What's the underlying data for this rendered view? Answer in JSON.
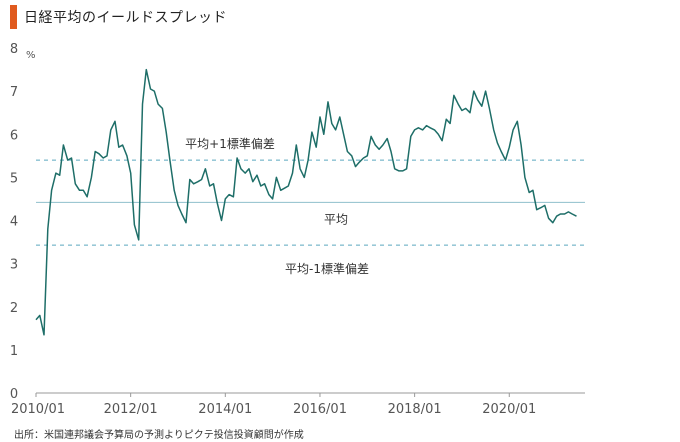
{
  "title": "日経平均のイールドスプレッド",
  "source": "出所：米国連邦議会予算局の予測よりピクテ投信投資顧問が作成",
  "colors": {
    "accent": "#e05a1e",
    "line": "#1e6e68",
    "band": "#5ba7bf",
    "mean": "#8fbfcc",
    "axis": "#999999"
  },
  "chart_data": {
    "type": "line",
    "title": "日経平均のイールドスプレッド",
    "xlabel": "",
    "ylabel": "%",
    "ylim": [
      0,
      8
    ],
    "yticks": [
      0,
      1,
      2,
      3,
      4,
      5,
      6,
      7,
      8
    ],
    "xlim": [
      2010.0,
      2021.6
    ],
    "xticks": [
      2010,
      2012,
      2014,
      2016,
      2018,
      2020
    ],
    "xtick_labels": [
      "2010/01",
      "2012/01",
      "2014/01",
      "2016/01",
      "2018/01",
      "2020/01"
    ],
    "grid": false,
    "reference_lines": [
      {
        "label": "平均+1標準偏差",
        "value": 5.4,
        "style": "dashed"
      },
      {
        "label": "平均",
        "value": 4.42,
        "style": "solid"
      },
      {
        "label": "平均-1標準偏差",
        "value": 3.43,
        "style": "dashed"
      }
    ],
    "series": [
      {
        "x": [
          2010.0,
          2010.08,
          2010.17,
          2010.25,
          2010.33,
          2010.42,
          2010.5,
          2010.58,
          2010.67,
          2010.75,
          2010.83,
          2010.92,
          2011.0,
          2011.08,
          2011.17,
          2011.25,
          2011.33,
          2011.42,
          2011.5,
          2011.58,
          2011.67,
          2011.75,
          2011.83,
          2011.92,
          2012.0,
          2012.08,
          2012.17,
          2012.25,
          2012.33,
          2012.42,
          2012.5,
          2012.58,
          2012.67,
          2012.75,
          2012.83,
          2012.92,
          2013.0,
          2013.08,
          2013.17,
          2013.25,
          2013.33,
          2013.42,
          2013.5,
          2013.58,
          2013.67,
          2013.75,
          2013.83,
          2013.92,
          2014.0,
          2014.08,
          2014.17,
          2014.25,
          2014.33,
          2014.42,
          2014.5,
          2014.58,
          2014.67,
          2014.75,
          2014.83,
          2014.92,
          2015.0,
          2015.08,
          2015.17,
          2015.25,
          2015.33,
          2015.42,
          2015.5,
          2015.58,
          2015.67,
          2015.75,
          2015.83,
          2015.92,
          2016.0,
          2016.08,
          2016.17,
          2016.25,
          2016.33,
          2016.42,
          2016.5,
          2016.58,
          2016.67,
          2016.75,
          2016.83,
          2016.92,
          2017.0,
          2017.08,
          2017.17,
          2017.25,
          2017.33,
          2017.42,
          2017.5,
          2017.58,
          2017.67,
          2017.75,
          2017.83,
          2017.92,
          2018.0,
          2018.08,
          2018.17,
          2018.25,
          2018.33,
          2018.42,
          2018.5,
          2018.58,
          2018.67,
          2018.75,
          2018.83,
          2018.92,
          2019.0,
          2019.08,
          2019.17,
          2019.25,
          2019.33,
          2019.42,
          2019.5,
          2019.58,
          2019.67,
          2019.75,
          2019.83,
          2019.92,
          2020.0,
          2020.08,
          2020.17,
          2020.25,
          2020.33,
          2020.42,
          2020.5,
          2020.58,
          2020.67,
          2020.75,
          2020.83,
          2020.92,
          2021.0,
          2021.08,
          2021.17,
          2021.25,
          2021.33,
          2021.42
        ],
        "values": [
          1.7,
          1.8,
          1.35,
          3.8,
          4.7,
          5.1,
          5.05,
          5.75,
          5.4,
          5.45,
          4.85,
          4.7,
          4.7,
          4.55,
          5.0,
          5.6,
          5.55,
          5.45,
          5.5,
          6.1,
          6.3,
          5.7,
          5.75,
          5.5,
          5.1,
          3.9,
          3.55,
          6.7,
          7.5,
          7.05,
          7.0,
          6.7,
          6.6,
          6.05,
          5.4,
          4.7,
          4.35,
          4.15,
          3.95,
          4.95,
          4.85,
          4.9,
          4.95,
          5.2,
          4.8,
          4.85,
          4.4,
          4.0,
          4.5,
          4.6,
          4.55,
          5.45,
          5.2,
          5.1,
          5.2,
          4.9,
          5.05,
          4.8,
          4.85,
          4.6,
          4.5,
          5.0,
          4.7,
          4.75,
          4.8,
          5.1,
          5.75,
          5.2,
          5.0,
          5.4,
          6.05,
          5.7,
          6.4,
          6.0,
          6.75,
          6.25,
          6.1,
          6.4,
          6.0,
          5.6,
          5.5,
          5.25,
          5.35,
          5.45,
          5.5,
          5.95,
          5.75,
          5.65,
          5.75,
          5.9,
          5.6,
          5.2,
          5.15,
          5.15,
          5.2,
          5.95,
          6.1,
          6.15,
          6.1,
          6.2,
          6.15,
          6.1,
          6.0,
          5.85,
          6.35,
          6.25,
          6.9,
          6.7,
          6.55,
          6.6,
          6.5,
          7.0,
          6.8,
          6.65,
          7.0,
          6.6,
          6.1,
          5.8,
          5.6,
          5.4,
          5.7,
          6.1,
          6.3,
          5.75,
          5.0,
          4.65,
          4.7,
          4.25,
          4.3,
          4.35,
          4.05,
          3.95,
          4.1,
          4.15,
          4.15,
          4.2,
          4.15,
          4.1
        ]
      }
    ]
  }
}
